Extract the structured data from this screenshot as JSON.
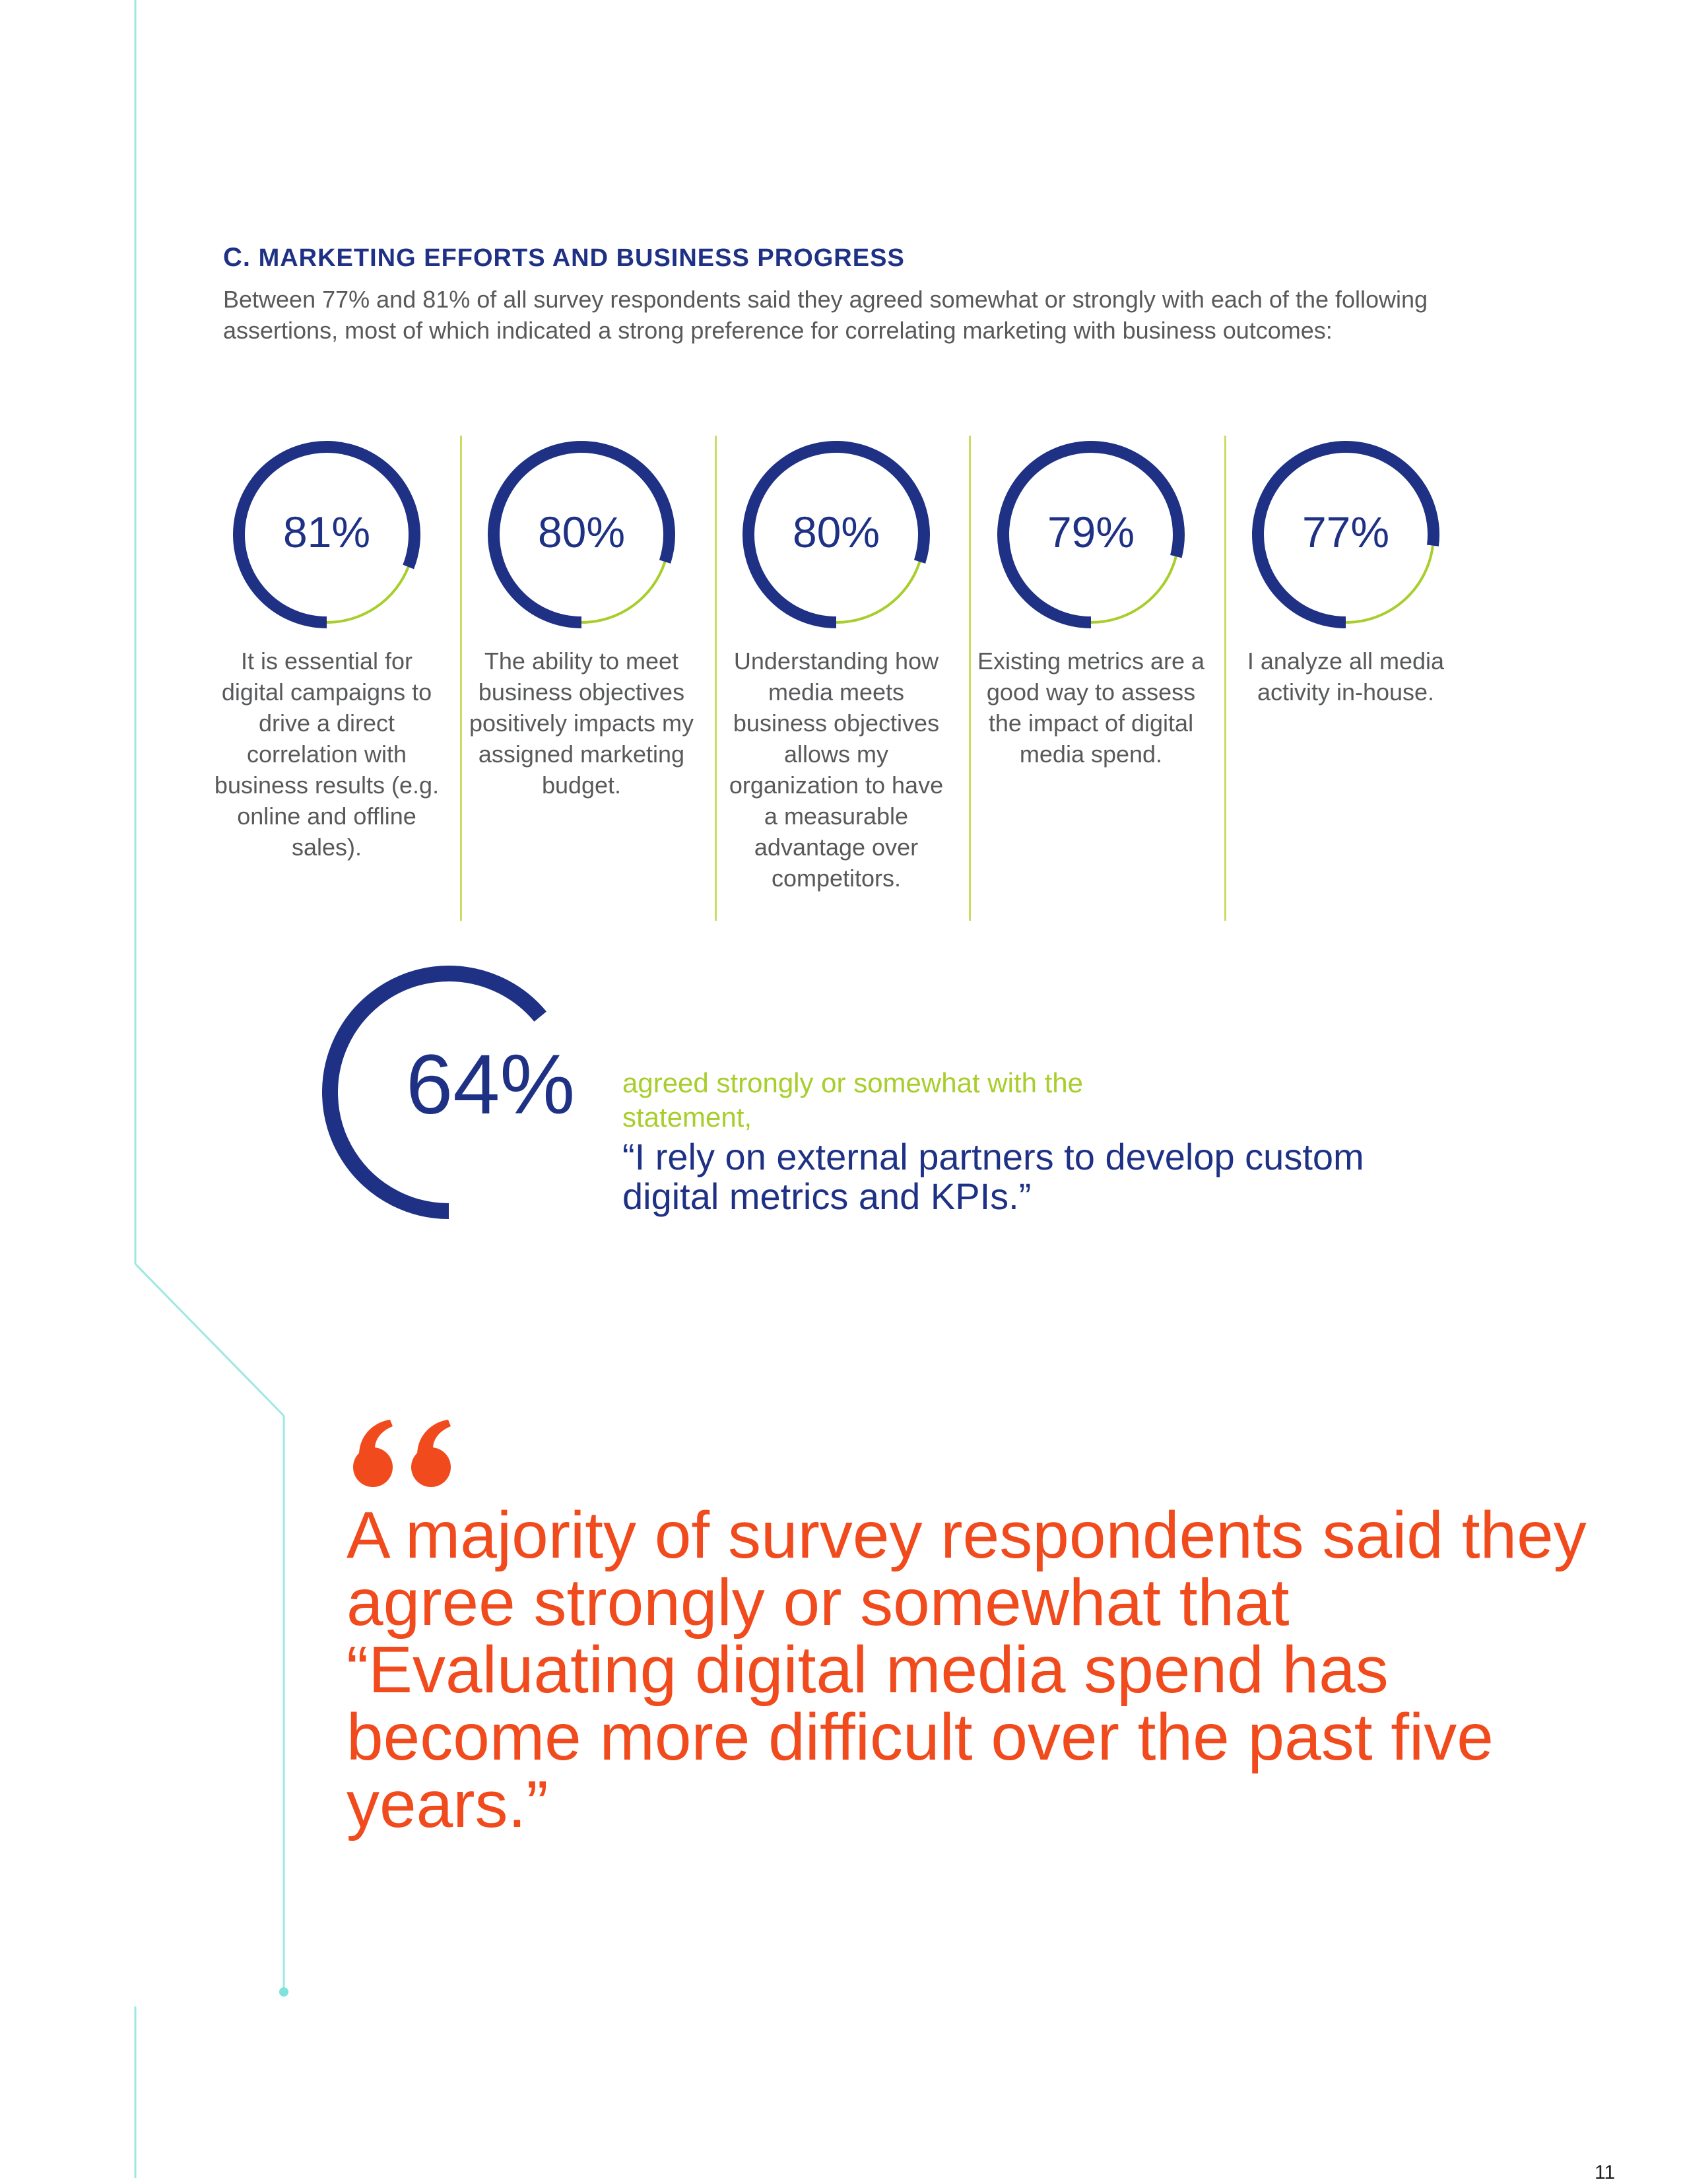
{
  "section": {
    "letter": "C.",
    "title": "MARKETING EFFORTS AND BUSINESS PROGRESS",
    "intro": "Between 77% and 81% of all survey respondents said they agreed somewhat or strongly with each of the following assertions, most of which indicated a strong preference for correlating marketing with business outcomes:"
  },
  "stats": [
    {
      "value": "81%",
      "fraction": 0.81,
      "description": "It is essential for digital campaigns to drive a direct correlation with business results (e.g. online and offline sales)."
    },
    {
      "value": "80%",
      "fraction": 0.8,
      "description": "The ability to meet business objectives positively impacts my assigned marketing budget."
    },
    {
      "value": "80%",
      "fraction": 0.8,
      "description": "Understanding how media meets business objectives allows my organization to have a measurable advantage over competitors."
    },
    {
      "value": "79%",
      "fraction": 0.79,
      "description": "Existing metrics are a good way to assess the impact of digital media spend."
    },
    {
      "value": "77%",
      "fraction": 0.77,
      "description": "I analyze all media activity in-house."
    }
  ],
  "callout": {
    "value": "64%",
    "fraction": 0.64,
    "lead": "agreed strongly or somewhat with the statement,",
    "quote": "“I rely on external partners to develop custom digital metrics and KPIs.”"
  },
  "pull_quote": {
    "mark": "“",
    "text": "A majority of survey respondents said they agree strongly or somewhat that “Evaluating digital media spend has become more difficult over the past five years.”"
  },
  "page_number": "11",
  "colors": {
    "navy": "#1f3185",
    "lime": "#a8ce2b",
    "orange": "#f04a1d",
    "teal_line": "#7ee3da",
    "body_text": "#58595b"
  }
}
